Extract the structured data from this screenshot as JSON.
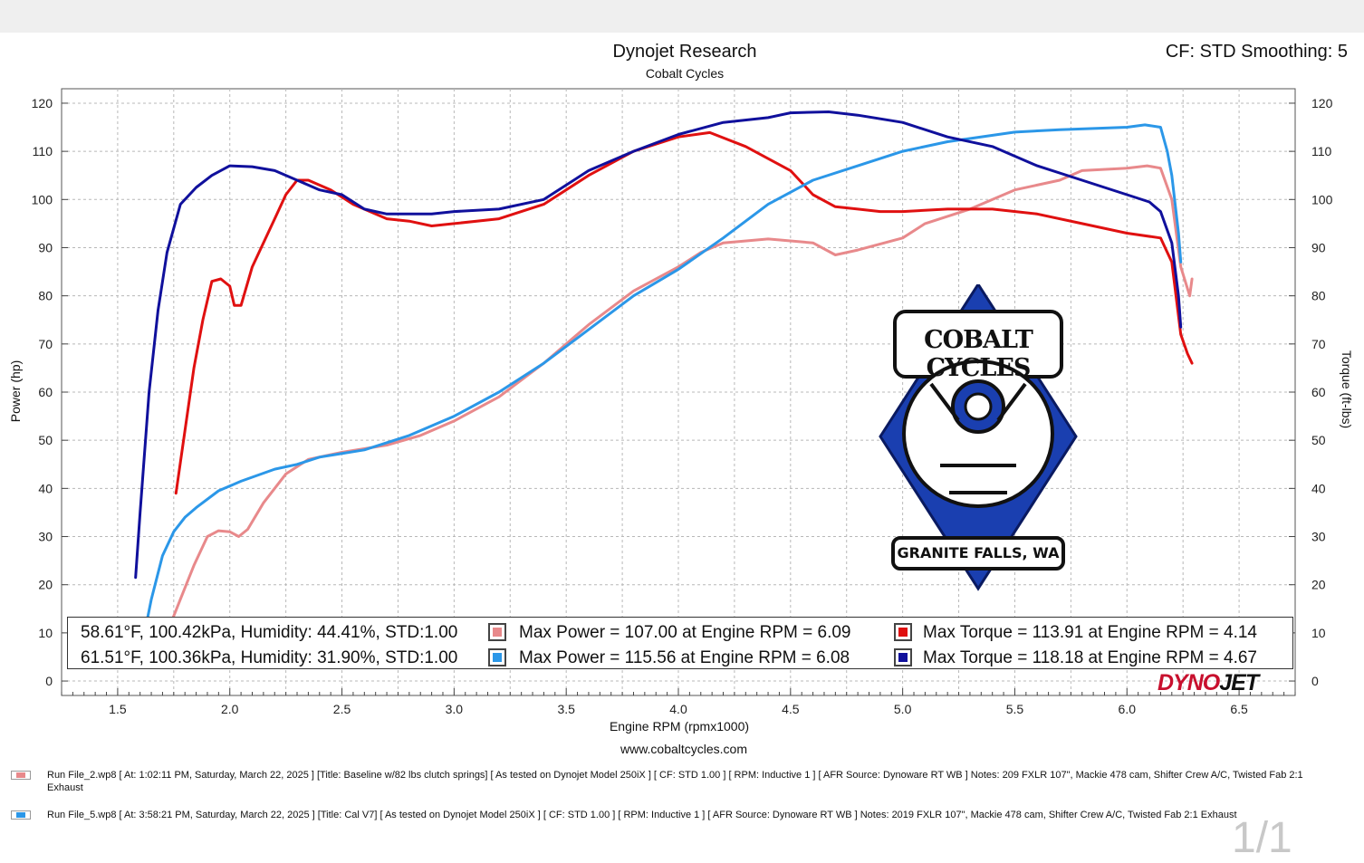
{
  "header": {
    "title": "Dynojet Research",
    "subtitle": "Cobalt Cycles",
    "cf_smoothing": "CF: STD Smoothing: 5"
  },
  "footer": {
    "website": "www.cobaltcycles.com",
    "page_indicator": "1/1",
    "brand": "DYNOJET"
  },
  "logo": {
    "line1": "COBALT CYCLES",
    "line2": "GRANITE FALLS, WA"
  },
  "colors": {
    "run2_power": "#e8898b",
    "run2_torque": "#e01010",
    "run5_power": "#2b97e8",
    "run5_torque": "#10109c"
  },
  "legend": {
    "rows": [
      {
        "conditions": "58.61°F, 100.42kPa, Humidity: 44.41%, STD:1.00",
        "power": "Max Power = 107.00 at Engine RPM = 6.09",
        "torque": "Max Torque = 113.91 at Engine RPM = 4.14",
        "power_color": "#e8898b",
        "torque_color": "#e01010"
      },
      {
        "conditions": "61.51°F, 100.36kPa, Humidity: 31.90%, STD:1.00",
        "power": "Max Power = 115.56 at Engine RPM = 6.08",
        "torque": "Max Torque = 118.18 at Engine RPM = 4.67",
        "power_color": "#2b97e8",
        "torque_color": "#10109c"
      }
    ]
  },
  "runs": [
    {
      "color": "#e8898b",
      "text": "Run File_2.wp8 [ At: 1:02:11 PM, Saturday, March 22, 2025 ] [Title: Baseline w/82 lbs clutch springs]  [ As tested on Dynojet Model 250iX ] [ CF: STD 1.00 ] [ RPM: Inductive 1 ] [ AFR Source: Dynoware RT WB ] Notes: 209 FXLR 107\", Mackie 478 cam, Shifter Crew A/C, Twisted Fab 2:1 Exhaust"
    },
    {
      "color": "#2b97e8",
      "text": "Run File_5.wp8 [ At: 3:58:21 PM, Saturday, March 22, 2025 ] [Title: Cal V7]  [ As tested on Dynojet Model 250iX ] [ CF: STD 1.00 ] [ RPM: Inductive 1 ] [ AFR Source: Dynoware RT WB ] Notes: 2019 FXLR 107\", Mackie 478 cam, Shifter Crew A/C, Twisted Fab 2:1 Exhaust"
    }
  ],
  "chart_data": {
    "type": "line",
    "xlabel": "Engine RPM (rpmx1000)",
    "ylabel": "Power (hp)",
    "ylabel_right": "Torque (ft-lbs)",
    "xlim": [
      1.25,
      6.75
    ],
    "ylim": [
      -3,
      123
    ],
    "x_ticks": [
      1.5,
      2.0,
      2.5,
      3.0,
      3.5,
      4.0,
      4.5,
      5.0,
      5.5,
      6.0,
      6.5
    ],
    "x_tick_labels": [
      "1.5",
      "2.0",
      "2.5",
      "3.0",
      "3.5",
      "4.0",
      "4.5",
      "5.0",
      "5.5",
      "6.0",
      "6.5"
    ],
    "y_ticks": [
      0,
      10,
      20,
      30,
      40,
      50,
      60,
      70,
      80,
      90,
      100,
      110,
      120
    ],
    "y_tick_labels": [
      "0",
      "10",
      "20",
      "30",
      "40",
      "50",
      "60",
      "70",
      "80",
      "90",
      "100",
      "110",
      "120"
    ],
    "grid": true,
    "series": [
      {
        "name": "Run File_2 Power",
        "color": "#e8898b",
        "points": [
          [
            1.72,
            10
          ],
          [
            1.78,
            17
          ],
          [
            1.84,
            24
          ],
          [
            1.9,
            30
          ],
          [
            1.95,
            31.2
          ],
          [
            2.0,
            31
          ],
          [
            2.04,
            30
          ],
          [
            2.08,
            31.5
          ],
          [
            2.15,
            37
          ],
          [
            2.25,
            43
          ],
          [
            2.35,
            46
          ],
          [
            2.5,
            47.5
          ],
          [
            2.7,
            49
          ],
          [
            2.85,
            51
          ],
          [
            3.0,
            54
          ],
          [
            3.2,
            59
          ],
          [
            3.4,
            66
          ],
          [
            3.6,
            74
          ],
          [
            3.8,
            81
          ],
          [
            4.0,
            86
          ],
          [
            4.1,
            89
          ],
          [
            4.2,
            91
          ],
          [
            4.4,
            91.8
          ],
          [
            4.6,
            91
          ],
          [
            4.7,
            88.5
          ],
          [
            4.8,
            89.5
          ],
          [
            5.0,
            92
          ],
          [
            5.1,
            95
          ],
          [
            5.3,
            98
          ],
          [
            5.5,
            102
          ],
          [
            5.7,
            104
          ],
          [
            5.8,
            106
          ],
          [
            6.0,
            106.5
          ],
          [
            6.09,
            107
          ],
          [
            6.15,
            106.5
          ],
          [
            6.2,
            100
          ],
          [
            6.24,
            86
          ],
          [
            6.28,
            80
          ],
          [
            6.29,
            83.5
          ]
        ]
      },
      {
        "name": "Run File_2 Torque",
        "color": "#e01010",
        "points": [
          [
            1.76,
            39
          ],
          [
            1.8,
            52
          ],
          [
            1.84,
            65
          ],
          [
            1.88,
            75
          ],
          [
            1.92,
            83
          ],
          [
            1.96,
            83.5
          ],
          [
            2.0,
            82
          ],
          [
            2.02,
            78
          ],
          [
            2.05,
            78
          ],
          [
            2.1,
            86
          ],
          [
            2.2,
            96
          ],
          [
            2.25,
            101
          ],
          [
            2.3,
            104
          ],
          [
            2.35,
            104
          ],
          [
            2.45,
            102
          ],
          [
            2.55,
            99
          ],
          [
            2.7,
            96
          ],
          [
            2.8,
            95.5
          ],
          [
            2.9,
            94.5
          ],
          [
            3.0,
            95
          ],
          [
            3.2,
            96
          ],
          [
            3.4,
            99
          ],
          [
            3.6,
            105
          ],
          [
            3.8,
            110
          ],
          [
            4.0,
            113
          ],
          [
            4.14,
            113.9
          ],
          [
            4.3,
            111
          ],
          [
            4.5,
            106
          ],
          [
            4.6,
            101
          ],
          [
            4.7,
            98.5
          ],
          [
            4.8,
            98
          ],
          [
            4.9,
            97.5
          ],
          [
            5.0,
            97.5
          ],
          [
            5.2,
            98
          ],
          [
            5.4,
            98
          ],
          [
            5.6,
            97
          ],
          [
            5.8,
            95
          ],
          [
            6.0,
            93
          ],
          [
            6.15,
            92
          ],
          [
            6.2,
            87
          ],
          [
            6.24,
            72
          ],
          [
            6.27,
            68
          ],
          [
            6.29,
            66
          ]
        ]
      },
      {
        "name": "Run File_5 Power",
        "color": "#2b97e8",
        "points": [
          [
            1.62,
            10
          ],
          [
            1.65,
            17
          ],
          [
            1.7,
            26
          ],
          [
            1.75,
            31
          ],
          [
            1.8,
            34
          ],
          [
            1.85,
            36
          ],
          [
            1.95,
            39.5
          ],
          [
            2.05,
            41.5
          ],
          [
            2.2,
            44
          ],
          [
            2.3,
            45
          ],
          [
            2.4,
            46.5
          ],
          [
            2.6,
            48
          ],
          [
            2.8,
            51
          ],
          [
            3.0,
            55
          ],
          [
            3.2,
            60
          ],
          [
            3.4,
            66
          ],
          [
            3.6,
            73
          ],
          [
            3.8,
            80
          ],
          [
            4.0,
            85.5
          ],
          [
            4.2,
            92
          ],
          [
            4.4,
            99
          ],
          [
            4.6,
            104
          ],
          [
            4.8,
            107
          ],
          [
            5.0,
            110
          ],
          [
            5.2,
            112
          ],
          [
            5.5,
            114
          ],
          [
            5.7,
            114.5
          ],
          [
            6.0,
            115
          ],
          [
            6.08,
            115.5
          ],
          [
            6.15,
            115
          ],
          [
            6.18,
            110
          ],
          [
            6.2,
            105
          ],
          [
            6.23,
            93
          ],
          [
            6.24,
            87
          ]
        ]
      },
      {
        "name": "Run File_5 Torque",
        "color": "#10109c",
        "points": [
          [
            1.58,
            21.5
          ],
          [
            1.6,
            35
          ],
          [
            1.64,
            60
          ],
          [
            1.68,
            77
          ],
          [
            1.72,
            89
          ],
          [
            1.78,
            99
          ],
          [
            1.85,
            102.5
          ],
          [
            1.92,
            105
          ],
          [
            2.0,
            107
          ],
          [
            2.1,
            106.8
          ],
          [
            2.2,
            106
          ],
          [
            2.3,
            104
          ],
          [
            2.4,
            102
          ],
          [
            2.5,
            101
          ],
          [
            2.6,
            98
          ],
          [
            2.7,
            97
          ],
          [
            2.9,
            97
          ],
          [
            3.0,
            97.5
          ],
          [
            3.2,
            98
          ],
          [
            3.4,
            100
          ],
          [
            3.6,
            106
          ],
          [
            3.8,
            110
          ],
          [
            4.0,
            113.5
          ],
          [
            4.2,
            116
          ],
          [
            4.4,
            117
          ],
          [
            4.5,
            118
          ],
          [
            4.67,
            118.2
          ],
          [
            4.8,
            117.5
          ],
          [
            5.0,
            116
          ],
          [
            5.2,
            113
          ],
          [
            5.4,
            111
          ],
          [
            5.6,
            107
          ],
          [
            5.8,
            104
          ],
          [
            6.0,
            101
          ],
          [
            6.1,
            99.5
          ],
          [
            6.15,
            97.5
          ],
          [
            6.2,
            91
          ],
          [
            6.23,
            80
          ],
          [
            6.24,
            73.5
          ]
        ]
      }
    ]
  }
}
